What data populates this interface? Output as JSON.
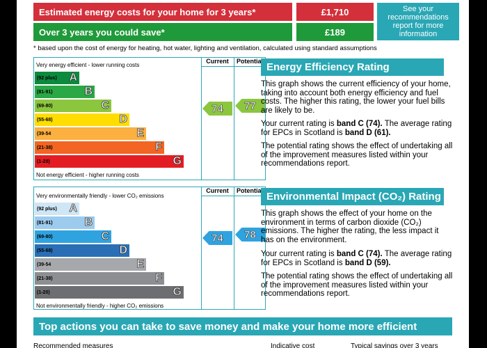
{
  "costs": {
    "estimated_label": "Estimated energy costs for your home for 3 years*",
    "estimated_value": "£1,710",
    "save_label": "Over 3 years you could save*",
    "save_value": "£189",
    "see_box": "See your recommendations report for more information",
    "red": "#d3303b",
    "green": "#1f9a3a"
  },
  "footnote": "* based upon the cost of energy for heating, hot water, lighting and ventilation, calculated using standard assumptions",
  "energy_chart": {
    "top_label": "Very energy efficient - lower running costs",
    "bottom_label": "Not energy efficient - higher running costs",
    "col_current": "Current",
    "col_potential": "Potential",
    "bands": [
      {
        "range": "(92 plus)",
        "letter": "A",
        "color": "#0c8a3e"
      },
      {
        "range": "(81-91)",
        "letter": "B",
        "color": "#2aa845"
      },
      {
        "range": "(69-80)",
        "letter": "C",
        "color": "#8cc63f"
      },
      {
        "range": "(55-68)",
        "letter": "D",
        "color": "#ffdd00"
      },
      {
        "range": "(39-54",
        "letter": "E",
        "color": "#fbb040"
      },
      {
        "range": "(21-38)",
        "letter": "F",
        "color": "#f26522"
      },
      {
        "range": "(1-20)",
        "letter": "G",
        "color": "#e31d23"
      }
    ],
    "current": "74",
    "potential": "77",
    "arrow_color": "#8cc63f"
  },
  "env_chart": {
    "top_label": "Very environmentally friendly - lower CO₂ emissions",
    "bottom_label": "Not environmentally friendly - higher CO₂ emissions",
    "col_current": "Current",
    "col_potential": "Potential",
    "bands": [
      {
        "range": "(92 plus)",
        "letter": "A",
        "color": "#cfe6f6"
      },
      {
        "range": "(81-91)",
        "letter": "B",
        "color": "#9ccbee"
      },
      {
        "range": "(69-80)",
        "letter": "C",
        "color": "#2fa3e0"
      },
      {
        "range": "(55-68)",
        "letter": "D",
        "color": "#2a6fb6"
      },
      {
        "range": "(39-54",
        "letter": "E",
        "color": "#a6a8ab"
      },
      {
        "range": "(21-38)",
        "letter": "F",
        "color": "#8c8e91"
      },
      {
        "range": "(1-20)",
        "letter": "G",
        "color": "#6d6e71"
      }
    ],
    "current": "74",
    "potential": "78",
    "arrow_color": "#2fa3e0"
  },
  "energy_text": {
    "heading": "Energy Efficiency Rating",
    "p1": "This graph shows the current efficiency of your home, taking into account both energy efficiency and fuel costs. The higher this rating, the lower your fuel bills are likely to be.",
    "p2a": "Your current rating is ",
    "p2b": "band C (74).",
    "p2c": " The average rating for EPCs in Scotland is ",
    "p2d": "band D (61).",
    "p3": "The potential rating shows the effect of undertaking all of the improvement measures listed within your recommendations report."
  },
  "env_text": {
    "heading": "Environmental Impact (CO₂) Rating",
    "p1": "This graph shows the effect of your home on the environment in terms of carbon dioxide (CO₂) emissions. The higher the rating, the less impact it has on the environment.",
    "p2a": "Your current rating is ",
    "p2b": "band C (74).",
    "p2c": " The average rating for EPCs in Scotland is ",
    "p2d": "band D (59).",
    "p3": "The potential rating shows the effect of undertaking all of the improvement measures listed within your recommendations report."
  },
  "bottom": {
    "title": "Top actions you can take to save money and make your home more efficient",
    "stub1": "Recommended measures",
    "stub2": "Indicative cost",
    "stub3": "Typical savings over 3 years"
  }
}
